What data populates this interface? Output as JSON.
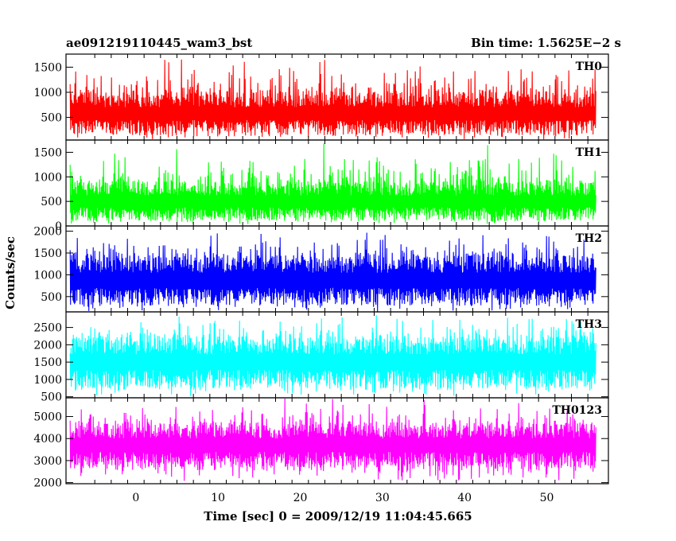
{
  "plot": {
    "title_left": "ae091219110445_wam3_bst",
    "title_right": "Bin time: 1.5625E−2 s",
    "ylabel": "Counts/sec",
    "xlabel": "Time [sec] 0 = 2009/12/19 11:04:45.665"
  },
  "chart_data": {
    "type": "line",
    "shared_x_axis": {
      "label": "Time [sec] 0 = 2009/12/19 11:04:45.665",
      "range": [
        -8.5,
        57.5
      ],
      "ticks": [
        0,
        10,
        20,
        30,
        40,
        50
      ],
      "data_range": [
        -8,
        56
      ],
      "bin_time_s": 0.015625
    },
    "ylabel": "Counts/sec",
    "panels": [
      {
        "name": "TH0",
        "color": "#ff0000",
        "ylim": [
          50,
          1760
        ],
        "yticks": [
          500,
          1000,
          1500
        ],
        "typical_range": [
          150,
          1000
        ],
        "min": 40,
        "max": 1750
      },
      {
        "name": "TH1",
        "color": "#00ff00",
        "ylim": [
          0,
          1750
        ],
        "yticks": [
          0,
          500,
          1000,
          1500
        ],
        "typical_range": [
          100,
          900
        ],
        "min": 20,
        "max": 1700
      },
      {
        "name": "TH2",
        "color": "#0000ff",
        "ylim": [
          150,
          2120
        ],
        "yticks": [
          500,
          1000,
          1500,
          2000
        ],
        "typical_range": [
          300,
          1450
        ],
        "min": 150,
        "max": 2100
      },
      {
        "name": "TH3",
        "color": "#00ffff",
        "ylim": [
          470,
          2950
        ],
        "yticks": [
          500,
          1000,
          1500,
          2000,
          2500
        ],
        "typical_range": [
          750,
          2250
        ],
        "min": 480,
        "max": 2950
      },
      {
        "name": "TH0123",
        "color": "#ff00ff",
        "ylim": [
          1950,
          5850
        ],
        "yticks": [
          2000,
          3000,
          4000,
          5000
        ],
        "typical_range": [
          2700,
          4700
        ],
        "min": 1950,
        "max": 5850
      }
    ]
  }
}
